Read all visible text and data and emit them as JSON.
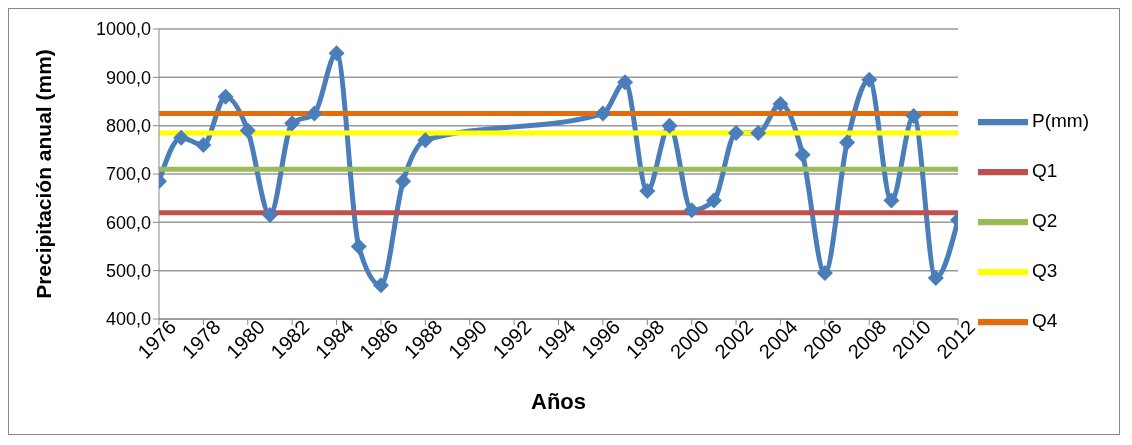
{
  "chart_data": {
    "type": "line",
    "xlabel": "Años",
    "ylabel": "Precipitación anual (mm)",
    "xlim": [
      1976,
      2012
    ],
    "xticks": [
      1976,
      1978,
      1980,
      1982,
      1984,
      1986,
      1988,
      1990,
      1992,
      1994,
      1996,
      1998,
      2000,
      2002,
      2004,
      2006,
      2008,
      2010,
      2012
    ],
    "ylim": [
      400,
      1000
    ],
    "yticks": [
      {
        "value": 400,
        "label": "400,0"
      },
      {
        "value": 500,
        "label": "500,0"
      },
      {
        "value": 600,
        "label": "600,0"
      },
      {
        "value": 700,
        "label": "700,0"
      },
      {
        "value": 800,
        "label": "800,0"
      },
      {
        "value": 900,
        "label": "900,0"
      },
      {
        "value": 1000,
        "label": "1000,0"
      }
    ],
    "grid": "y",
    "legend": "right",
    "marker": "diamond",
    "series": [
      {
        "name": "P(mm)",
        "color": "#4a7ebb",
        "x": [
          1976,
          1977,
          1978,
          1979,
          1980,
          1981,
          1982,
          1983,
          1984,
          1985,
          1986,
          1987,
          1988,
          1996,
          1997,
          1998,
          1999,
          2000,
          2001,
          2002,
          2003,
          2004,
          2005,
          2006,
          2007,
          2008,
          2009,
          2010,
          2011,
          2012
        ],
        "values": [
          685,
          775,
          760,
          860,
          790,
          615,
          805,
          825,
          950,
          550,
          470,
          685,
          770,
          825,
          890,
          665,
          800,
          625,
          645,
          785,
          785,
          845,
          740,
          495,
          765,
          895,
          645,
          820,
          485,
          605
        ]
      },
      {
        "name": "Q1",
        "color": "#c0504d",
        "marker": "none",
        "x": [
          1976,
          2012
        ],
        "values": [
          620,
          620
        ]
      },
      {
        "name": "Q2",
        "color": "#9bbb59",
        "marker": "none",
        "x": [
          1976,
          2012
        ],
        "values": [
          710,
          710
        ]
      },
      {
        "name": "Q3",
        "color": "#ffff00",
        "marker": "none",
        "x": [
          1976,
          2012
        ],
        "values": [
          785,
          785
        ]
      },
      {
        "name": "Q4",
        "color": "#e46c0a",
        "marker": "none",
        "x": [
          1976,
          2012
        ],
        "values": [
          825,
          825
        ]
      }
    ]
  }
}
